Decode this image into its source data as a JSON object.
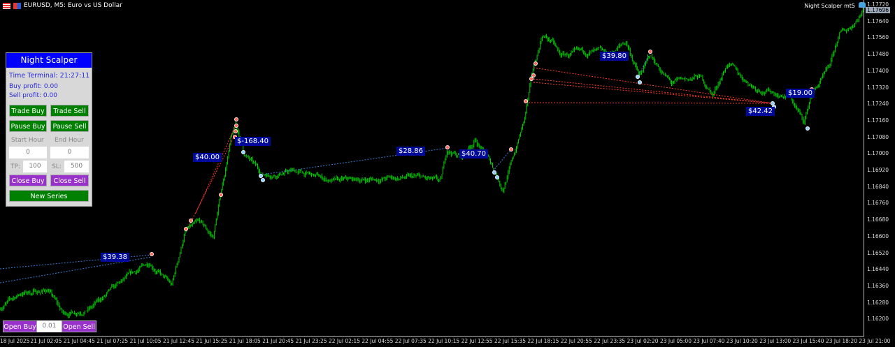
{
  "window": {
    "title": "EURUSD, M5:  Euro vs US Dollar",
    "ea_name": "Night Scalper mt5"
  },
  "colors": {
    "candles": "#00d000",
    "buy_line": "#3b7bd6",
    "sell_line": "#ff3b2b",
    "panel_title": "#0000ff",
    "green_button": "#008000",
    "purple_button": "#9932cc",
    "label_bg": "#000a9a"
  },
  "price_axis": {
    "ticks": [
      "1.17720",
      "1.17640",
      "1.17560",
      "1.17480",
      "1.17400",
      "1.17320",
      "1.17240",
      "1.17160",
      "1.17080",
      "1.17000",
      "1.16920",
      "1.16840",
      "1.16760",
      "1.16680",
      "1.16600",
      "1.16520",
      "1.16440",
      "1.16360",
      "1.16280",
      "1.16200"
    ],
    "current_price": "1.17696",
    "range": [
      1.162,
      1.1772
    ]
  },
  "time_axis": {
    "ticks": [
      "18 Jul 2025",
      "21 Jul 02:05",
      "21 Jul 04:45",
      "21 Jul 07:25",
      "21 Jul 10:05",
      "21 Jul 12:45",
      "21 Jul 15:25",
      "21 Jul 18:05",
      "21 Jul 20:45",
      "21 Jul 23:25",
      "22 Jul 02:15",
      "22 Jul 04:55",
      "22 Jul 07:35",
      "22 Jul 10:15",
      "22 Jul 12:55",
      "22 Jul 15:35",
      "22 Jul 18:15",
      "22 Jul 20:55",
      "22 Jul 23:35",
      "23 Jul 02:20",
      "23 Jul 05:00",
      "23 Jul 07:40",
      "23 Jul 10:20",
      "23 Jul 13:00",
      "23 Jul 15:40",
      "23 Jul 18:20",
      "23 Jul 21:00"
    ]
  },
  "price_path": [
    [
      0,
      1.16256
    ],
    [
      20,
      1.16324
    ],
    [
      47,
      1.16341
    ],
    [
      61,
      1.16223
    ],
    [
      88,
      1.16256
    ],
    [
      122,
      1.16392
    ],
    [
      145,
      1.16476
    ],
    [
      166,
      1.16358
    ],
    [
      179,
      1.16628
    ],
    [
      193,
      1.16662
    ],
    [
      206,
      1.16594
    ],
    [
      213,
      1.16797
    ],
    [
      223,
      1.17068
    ],
    [
      228,
      1.17135
    ],
    [
      236,
      1.17
    ],
    [
      253,
      1.16899
    ],
    [
      284,
      1.16916
    ],
    [
      324,
      1.16865
    ],
    [
      378,
      1.16882
    ],
    [
      405,
      1.16882
    ],
    [
      426,
      1.16858
    ],
    [
      432,
      1.17017
    ],
    [
      446,
      1.16983
    ],
    [
      459,
      1.17068
    ],
    [
      473,
      1.16966
    ],
    [
      486,
      1.16831
    ],
    [
      497,
      1.17
    ],
    [
      507,
      1.17169
    ],
    [
      514,
      1.17372
    ],
    [
      524,
      1.17575
    ],
    [
      534,
      1.17541
    ],
    [
      541,
      1.17473
    ],
    [
      574,
      1.1749
    ],
    [
      588,
      1.17473
    ],
    [
      605,
      1.17541
    ],
    [
      618,
      1.17372
    ],
    [
      628,
      1.17473
    ],
    [
      649,
      1.17338
    ],
    [
      676,
      1.17372
    ],
    [
      689,
      1.17287
    ],
    [
      703,
      1.1744
    ],
    [
      716,
      1.17372
    ],
    [
      730,
      1.17321
    ],
    [
      743,
      1.17304
    ],
    [
      764,
      1.1727
    ],
    [
      777,
      1.17152
    ],
    [
      784,
      1.17287
    ],
    [
      801,
      1.17406
    ],
    [
      811,
      1.17575
    ],
    [
      821,
      1.17608
    ],
    [
      834,
      1.17693
    ]
  ],
  "profit_labels": [
    "$39.38",
    "$40.00",
    "$-168.40",
    "$28.86",
    "$40.70",
    "$39.80",
    "$19.00",
    "$42.42"
  ],
  "panel": {
    "title": "Night Scalper",
    "time_terminal": "Time Terminal: 21:27:11",
    "buy_profit": "Buy profit: 0.00",
    "sell_profit": "Sell profit: 0.00",
    "trade_buy": "Trade Buy",
    "trade_sell": "Trade Sell",
    "pause_buy": "Pause Buy",
    "pause_sell": "Pause Sell",
    "start_hour_label": "Start Hour",
    "end_hour_label": "End Hour",
    "start_hour": "0",
    "end_hour": "0",
    "tp_label": "TP:",
    "tp": "100",
    "sl_label": "SL:",
    "sl": "500",
    "close_buy": "Close Buy",
    "close_sell": "Close Sell",
    "new_series": "New Series"
  },
  "quick_trade": {
    "open_buy": "Open Buy",
    "lot": "0.01",
    "open_sell": "Open Sell"
  }
}
